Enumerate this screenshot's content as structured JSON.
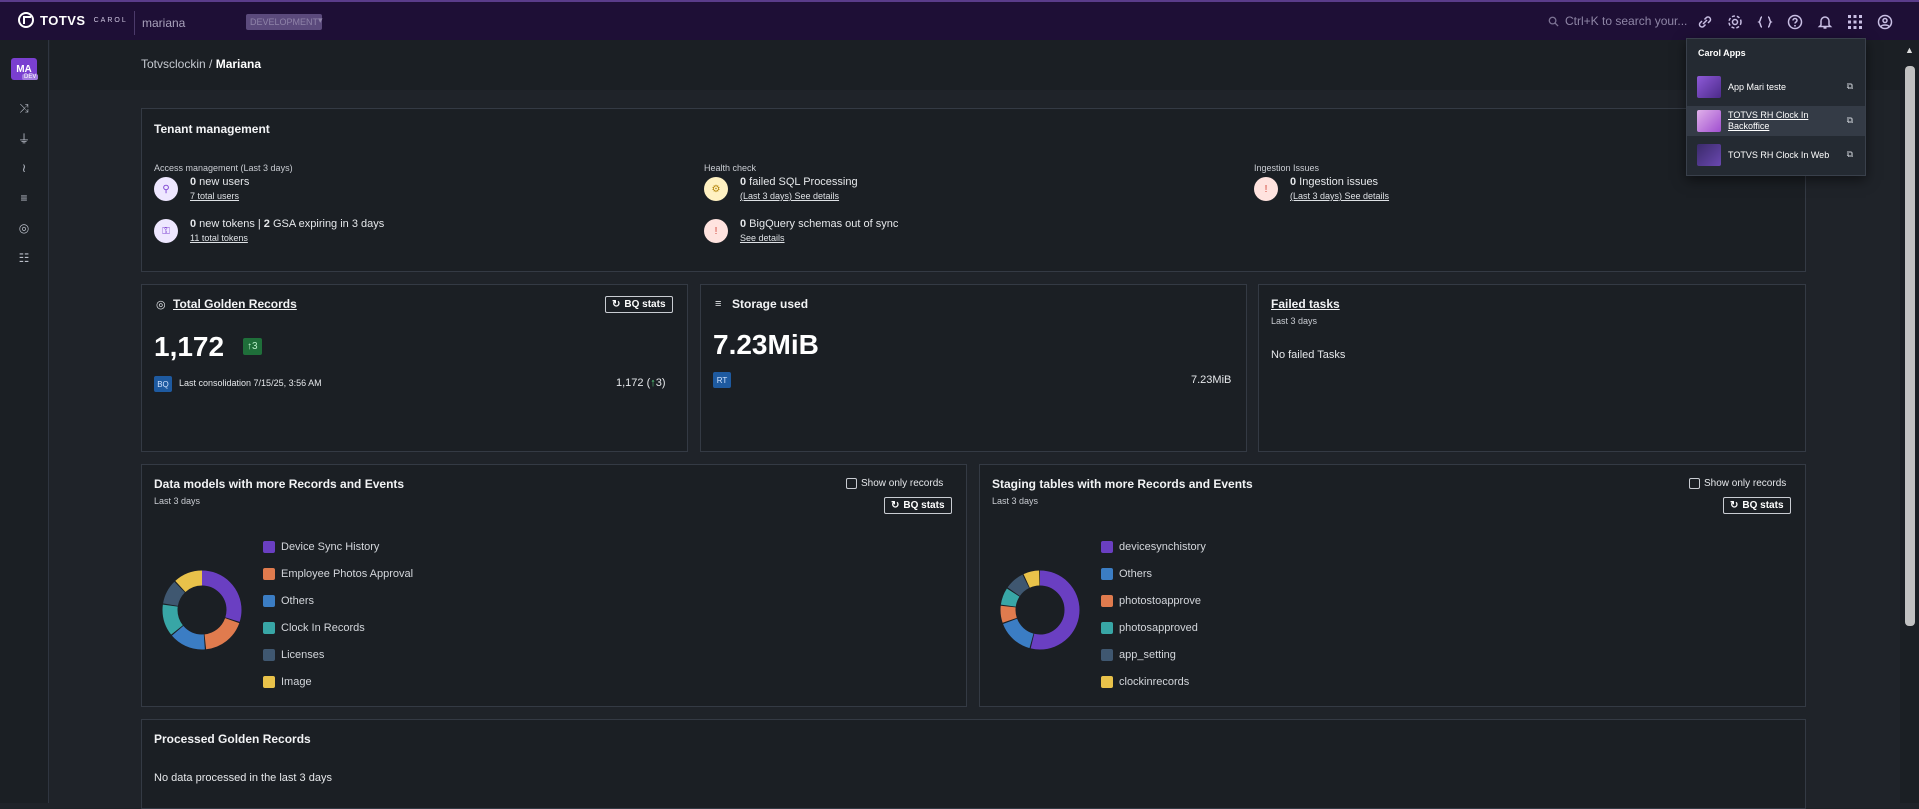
{
  "topbar": {
    "brand": "TOTVS",
    "brand_sub": "CAROL",
    "tenant": "mariana",
    "env": "DEVELOPMENT",
    "search_placeholder": "Ctrl+K to search your..."
  },
  "sidebar": {
    "avatar": "MA",
    "avatar_badge": "DEV"
  },
  "breadcrumb": {
    "parent": "Totvsclockin",
    "current": "Mariana"
  },
  "tenant_management": {
    "title": "Tenant management",
    "access": {
      "heading": "Access management (Last 3 days)",
      "users_count": "0",
      "users_text": " new users",
      "users_link": "7 total users",
      "tokens_count": "0",
      "tokens_text": " new tokens | ",
      "gsa_count": "2",
      "gsa_text": " GSA expiring in 3 days",
      "tokens_link": "11 total tokens"
    },
    "health": {
      "heading": "Health check",
      "sql_count": "0",
      "sql_text": " failed SQL Processing",
      "sql_link": "(Last 3 days) See details",
      "bq_count": "0",
      "bq_text": " BigQuery schemas out of sync",
      "bq_link": "See details"
    },
    "ingestion": {
      "heading": "Ingestion Issues",
      "count": "0",
      "text": " Ingestion issues",
      "link": "(Last 3 days) See details"
    }
  },
  "golden": {
    "title": "Total Golden Records",
    "btn": "BQ stats",
    "value": "1,172",
    "delta": "3",
    "tag": "BQ",
    "last": "Last consolidation 7/15/25, 3:56 AM",
    "right_value": "1,172 (",
    "right_delta": "3",
    "right_close": ")"
  },
  "storage": {
    "title": "Storage used",
    "value": "7.23MiB",
    "tag": "RT",
    "right_value": "7.23MiB"
  },
  "failed": {
    "title": "Failed tasks",
    "sub": "Last 3 days",
    "text": "No failed Tasks"
  },
  "datamodels": {
    "title": "Data models with more Records and Events",
    "sub": "Last 3 days",
    "check_label": "Show only records",
    "btn": "BQ stats",
    "legend": [
      {
        "label": "Device Sync History",
        "color": "#6a3fc2"
      },
      {
        "label": "Employee Photos Approval",
        "color": "#e07b4e"
      },
      {
        "label": "Others",
        "color": "#3b7dc4"
      },
      {
        "label": "Clock In Records",
        "color": "#38a6a6"
      },
      {
        "label": "Licenses",
        "color": "#3f5770"
      },
      {
        "label": "Image",
        "color": "#e9c24a"
      }
    ]
  },
  "staging": {
    "title": "Staging tables with more Records and Events",
    "sub": "Last 3 days",
    "check_label": "Show only records",
    "btn": "BQ stats",
    "legend": [
      {
        "label": "devicesynchistory",
        "color": "#6a3fc2"
      },
      {
        "label": "Others",
        "color": "#3b7dc4"
      },
      {
        "label": "photostoapprove",
        "color": "#e07b4e"
      },
      {
        "label": "photosapproved",
        "color": "#38a6a6"
      },
      {
        "label": "app_setting",
        "color": "#3f5770"
      },
      {
        "label": "clockinrecords",
        "color": "#e9c24a"
      }
    ]
  },
  "processed": {
    "title": "Processed Golden Records",
    "text": "No data processed in the last 3 days"
  },
  "carol_apps": {
    "title": "Carol Apps",
    "items": [
      {
        "label": "App Mari teste"
      },
      {
        "label": "TOTVS RH Clock In Backoffice"
      },
      {
        "label": "TOTVS RH Clock In Web"
      }
    ]
  }
}
